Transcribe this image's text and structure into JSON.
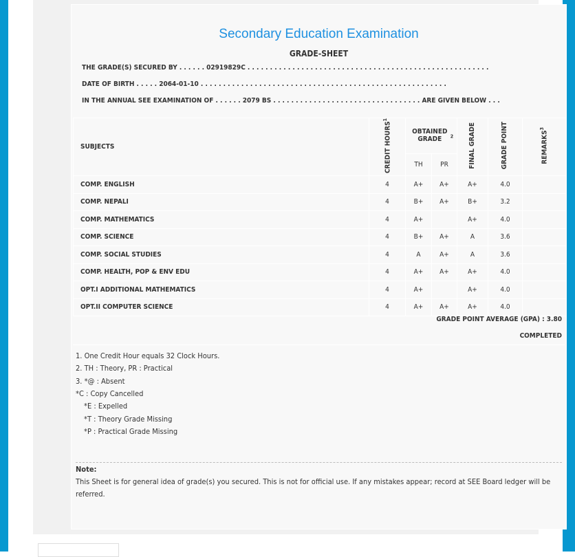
{
  "header": {
    "title": "Secondary Education Examination",
    "subtitle": "GRADE-SHEET"
  },
  "info": {
    "secured_by": "THE GRADE(S) SECURED BY . . . . . . 02919829C . . . . . . . . . . . . . . . . . . . . . . . . . . . . . . . . . . . . . . . . . . . . . . . . . . . . . .",
    "dob": "DATE OF BIRTH . . . . . 2064-01-10 . . . . . . . . . . . . . . . . . . . . . . . . . . . . . . . . . . . . . . . . . . . . . . . . . . . . . . .",
    "exam": "IN THE ANNUAL SEE EXAMINATION OF . . . . . . 2079 BS . . . . . . . . . . . . . . . . . . . . . . . . . . . . . . . . . ARE GIVEN BELOW . . ."
  },
  "table": {
    "headers": {
      "subjects": "SUBJECTS",
      "credit": "CREDIT HOURS",
      "credit_sup": "1",
      "obtained": "OBTAINED GRADE",
      "obtained_sup": "2",
      "th": "TH",
      "pr": "PR",
      "final": "FINAL GRADE",
      "gp": "GRADE POINT",
      "remarks": "REMARKS",
      "remarks_sup": "3"
    },
    "rows": [
      {
        "subject": "COMP. ENGLISH",
        "credit": "4",
        "th": "A+",
        "pr": "A+",
        "final": "A+",
        "gp": "4.0",
        "remarks": ""
      },
      {
        "subject": "COMP. NEPALI",
        "credit": "4",
        "th": "B+",
        "pr": "A+",
        "final": "B+",
        "gp": "3.2",
        "remarks": ""
      },
      {
        "subject": "COMP. MATHEMATICS",
        "credit": "4",
        "th": "A+",
        "pr": "",
        "final": "A+",
        "gp": "4.0",
        "remarks": ""
      },
      {
        "subject": "COMP. SCIENCE",
        "credit": "4",
        "th": "B+",
        "pr": "A+",
        "final": "A",
        "gp": "3.6",
        "remarks": ""
      },
      {
        "subject": "COMP. SOCIAL STUDIES",
        "credit": "4",
        "th": "A",
        "pr": "A+",
        "final": "A",
        "gp": "3.6",
        "remarks": ""
      },
      {
        "subject": "COMP. HEALTH, POP & ENV EDU",
        "credit": "4",
        "th": "A+",
        "pr": "A+",
        "final": "A+",
        "gp": "4.0",
        "remarks": ""
      },
      {
        "subject": "OPT.I ADDITIONAL MATHEMATICS",
        "credit": "4",
        "th": "A+",
        "pr": "",
        "final": "A+",
        "gp": "4.0",
        "remarks": ""
      },
      {
        "subject": "OPT.II COMPUTER SCIENCE",
        "credit": "4",
        "th": "A+",
        "pr": "A+",
        "final": "A+",
        "gp": "4.0",
        "remarks": ""
      }
    ]
  },
  "gpa": "GRADE POINT AVERAGE (GPA) : 3.80",
  "status": "COMPLETED",
  "footnotes": [
    "1. One Credit Hour equals 32 Clock Hours.",
    "2. TH : Theory, PR : Practical",
    "3. *@ : Absent",
    "*C : Copy Cancelled",
    "*E : Expelled",
    "*T : Theory Grade Missing",
    "*P : Practical Grade Missing"
  ],
  "note": {
    "label": "Note:",
    "text": "This Sheet is for general idea of grade(s) you secured. This is not for official use. If any mistakes appear; record at SEE Board ledger will be referred."
  },
  "colors": {
    "accent": "#0798d0",
    "title": "#1e90e0"
  }
}
